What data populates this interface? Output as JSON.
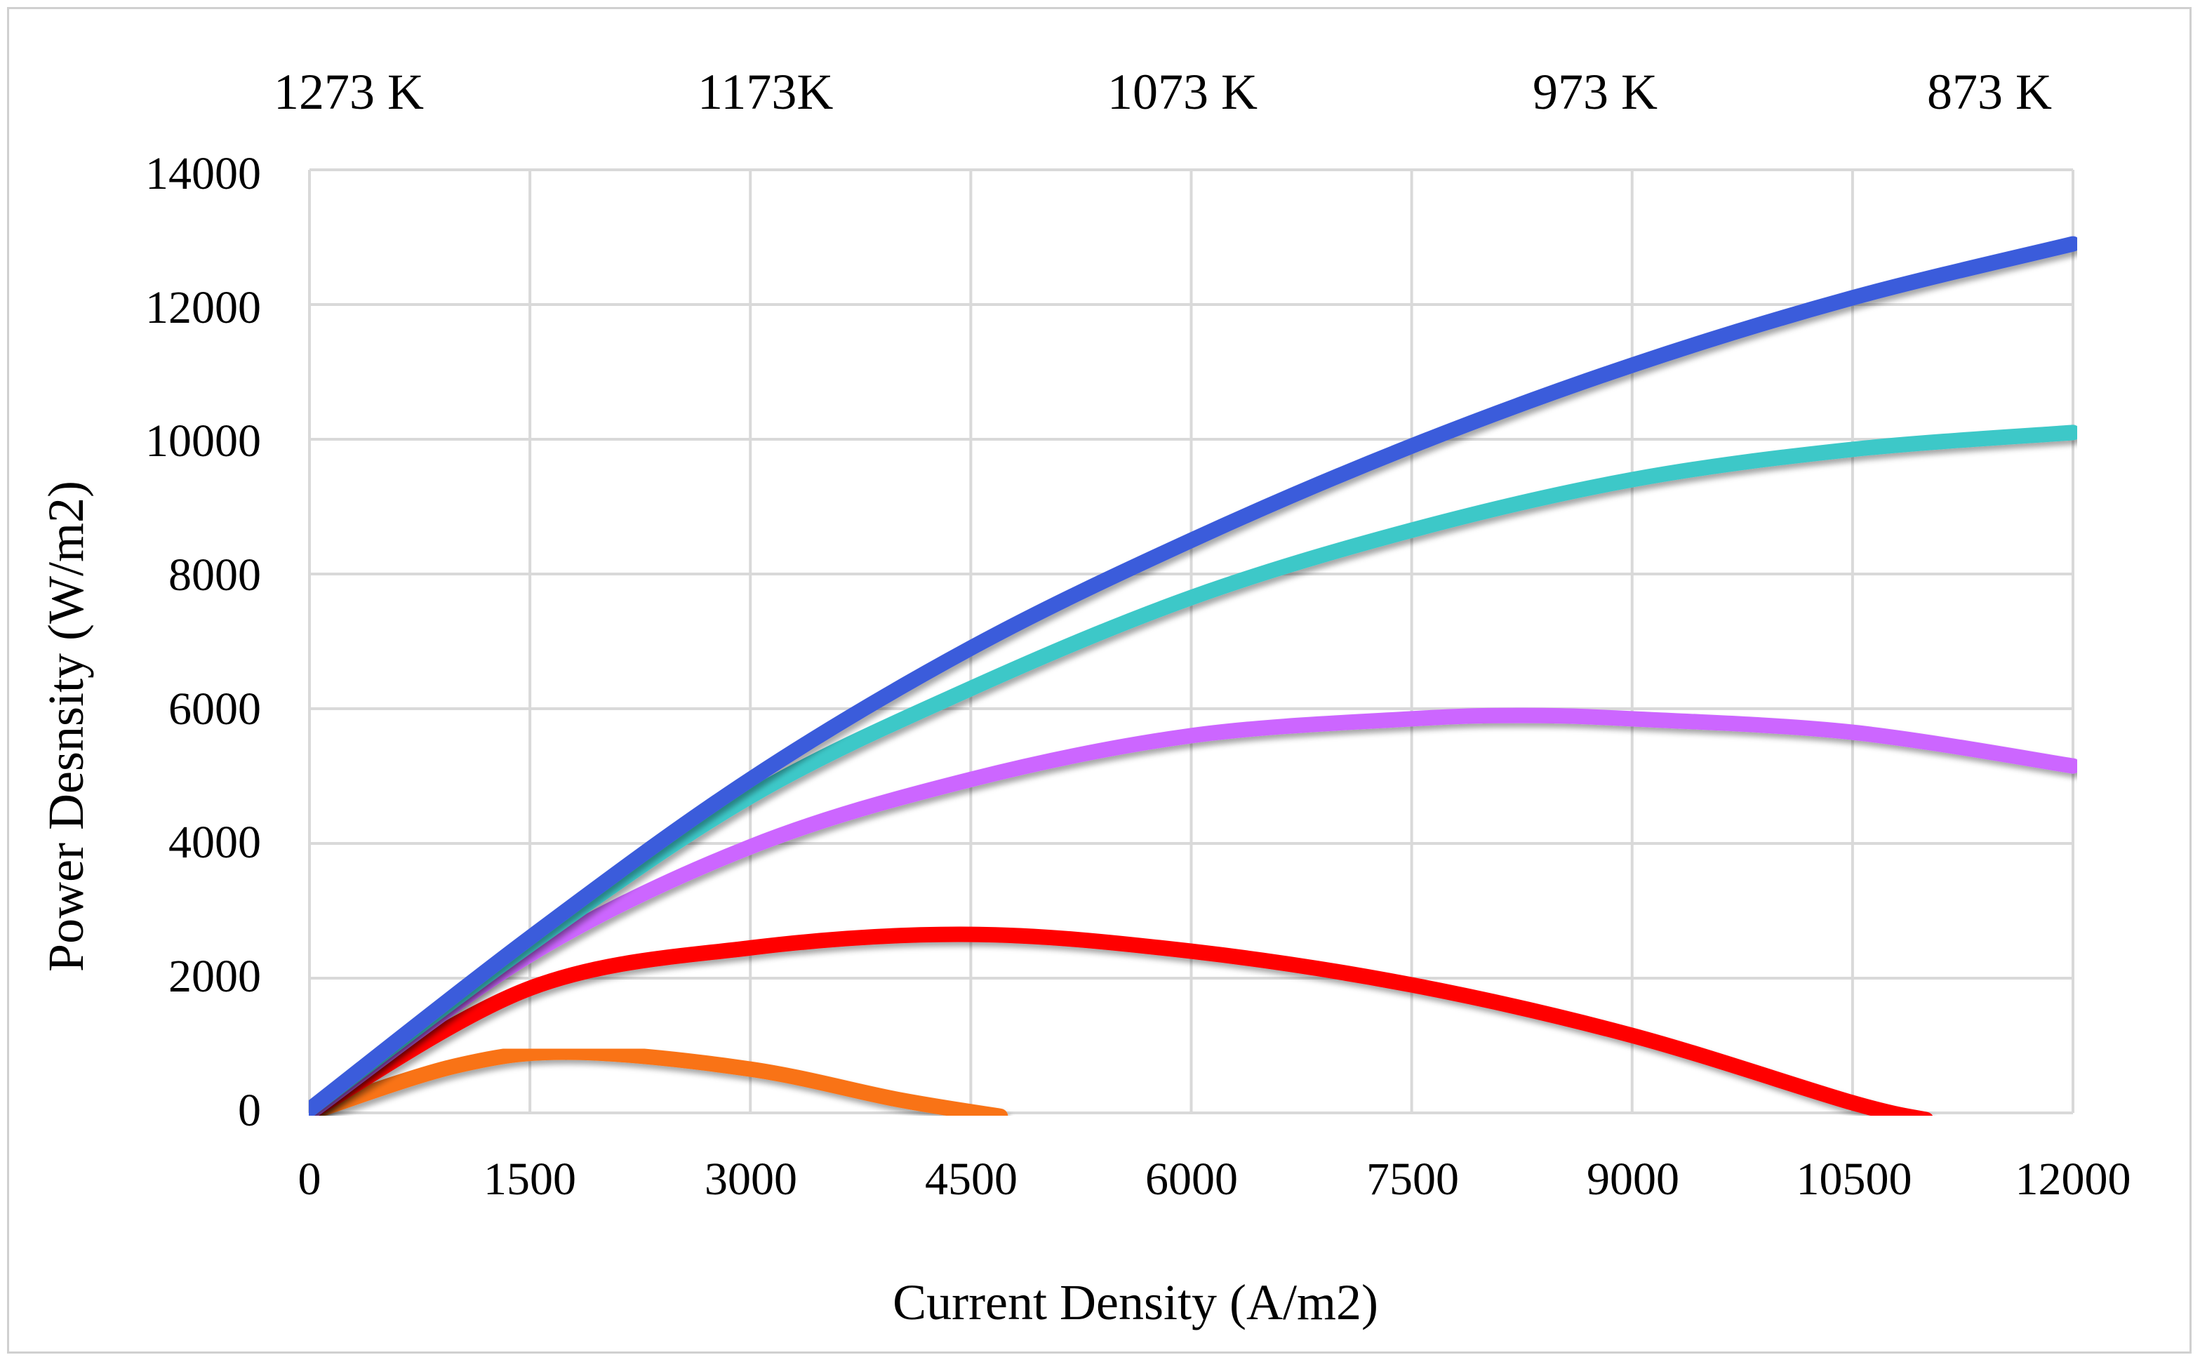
{
  "chart_data": {
    "type": "line",
    "title": "",
    "xlabel": "Current Density (A/m2)",
    "ylabel": "Power Desnsity (W/m2)",
    "xlim": [
      0,
      12000
    ],
    "ylim": [
      0,
      14000
    ],
    "x_ticks": [
      "0",
      "1500",
      "3000",
      "4500",
      "6000",
      "7500",
      "9000",
      "10500",
      "12000"
    ],
    "y_ticks": [
      "0",
      "2000",
      "4000",
      "6000",
      "8000",
      "10000",
      "12000",
      "14000"
    ],
    "grid": true,
    "legend_position": "top",
    "series": [
      {
        "name": "1273 K",
        "color": "#3b5bdb",
        "x": [
          0,
          1500,
          3000,
          4500,
          6000,
          7500,
          9000,
          10500,
          12000
        ],
        "values": [
          50,
          2600,
          4950,
          6900,
          8500,
          9900,
          11100,
          12100,
          12900
        ]
      },
      {
        "name": "1173K",
        "color": "#3cc8c8",
        "x": [
          0,
          1500,
          3000,
          4500,
          6000,
          7500,
          9000,
          10500,
          12000
        ],
        "values": [
          50,
          2500,
          4700,
          6300,
          7650,
          8650,
          9400,
          9850,
          10100
        ]
      },
      {
        "name": "1073 K",
        "color": "#cc66ff",
        "x": [
          0,
          1500,
          3000,
          4500,
          6000,
          7500,
          8250,
          9000,
          10500,
          12000
        ],
        "values": [
          0,
          2350,
          3950,
          4950,
          5600,
          5850,
          5900,
          5850,
          5650,
          5150
        ]
      },
      {
        "name": "973 K",
        "color": "#ff0000",
        "x": [
          0,
          1500,
          3000,
          4500,
          6000,
          7500,
          9000,
          10500,
          11000
        ],
        "values": [
          0,
          1850,
          2450,
          2650,
          2400,
          1900,
          1150,
          150,
          -100
        ]
      },
      {
        "name": "873 K",
        "color": "#f97316",
        "x": [
          0,
          1000,
          1800,
          3000,
          4000,
          4700
        ],
        "values": [
          0,
          700,
          900,
          650,
          200,
          -50
        ]
      }
    ]
  }
}
